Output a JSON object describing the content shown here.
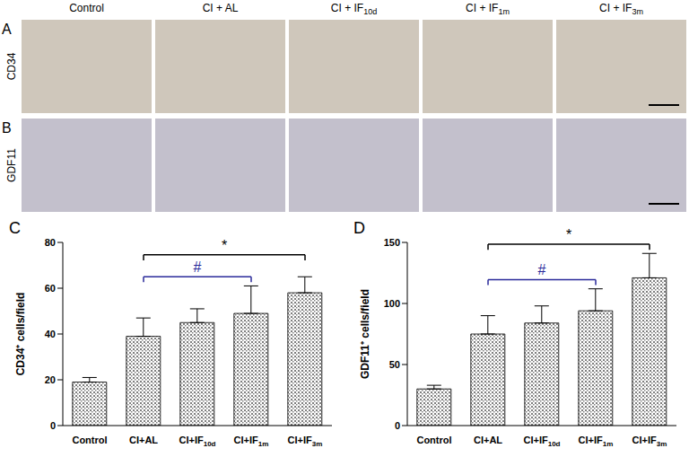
{
  "panels": {
    "columns": [
      "Control",
      "CI + AL",
      "CI + IF10d",
      "CI + IF1m",
      "CI + IF3m"
    ],
    "rows": [
      {
        "letter": "A",
        "label": "CD34"
      },
      {
        "letter": "B",
        "label": "GDF11"
      }
    ]
  },
  "chart_data": [
    {
      "panel": "C",
      "type": "bar",
      "categories": [
        "Control",
        "CI+AL",
        "CI+IF10d",
        "CI+IF1m",
        "CI+IF3m"
      ],
      "values": [
        19,
        39,
        45,
        49,
        58
      ],
      "errors": [
        2,
        8,
        6,
        12,
        7
      ],
      "color": "#7f7f7f",
      "ylabel": "CD34⁺ cells/field",
      "ylim": [
        0,
        80
      ],
      "yticks": [
        0,
        20,
        40,
        60,
        80
      ],
      "grid": false,
      "annotations": [
        {
          "from": "CI+AL",
          "to": "CI+IF1m",
          "label": "#",
          "color": "#2a2a9a"
        },
        {
          "from": "CI+AL",
          "to": "CI+IF3m",
          "label": "*",
          "color": "#000000"
        }
      ]
    },
    {
      "panel": "D",
      "type": "bar",
      "categories": [
        "Control",
        "CI+AL",
        "CI+IF10d",
        "CI+IF1m",
        "CI+IF3m"
      ],
      "values": [
        30,
        75,
        84,
        94,
        121
      ],
      "errors": [
        3,
        15,
        14,
        18,
        20
      ],
      "color": "#7f7f7f",
      "ylabel": "GDF11⁺ cells/field",
      "ylim": [
        0,
        150
      ],
      "yticks": [
        0,
        50,
        100,
        150
      ],
      "grid": false,
      "annotations": [
        {
          "from": "CI+AL",
          "to": "CI+IF1m",
          "label": "#",
          "color": "#2a2a9a"
        },
        {
          "from": "CI+AL",
          "to": "CI+IF3m",
          "label": "*",
          "color": "#000000"
        }
      ]
    }
  ]
}
